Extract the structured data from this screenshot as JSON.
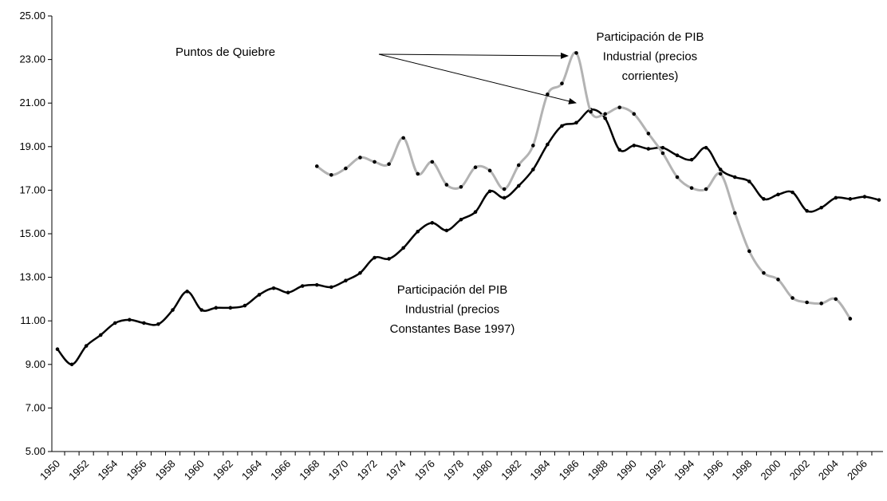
{
  "chart_data": {
    "type": "line",
    "categories": [
      "1950",
      null,
      "1952",
      null,
      "1954",
      null,
      "1956",
      null,
      "1958",
      null,
      "1960",
      null,
      "1962",
      null,
      "1964",
      null,
      "1966",
      null,
      "1968",
      null,
      "1970",
      null,
      "1972",
      null,
      "1974",
      null,
      "1976",
      null,
      "1978",
      null,
      "1980",
      null,
      "1982",
      null,
      "1984",
      null,
      "1986",
      null,
      "1988",
      null,
      "1990",
      null,
      "1992",
      null,
      "1994",
      null,
      "1996",
      null,
      "1998",
      null,
      "2000",
      null,
      "2002",
      null,
      "2004",
      null,
      "2006",
      null
    ],
    "series": [
      {
        "color": "#000000",
        "values": [
          9.7,
          9.0,
          9.85,
          10.35,
          10.9,
          11.05,
          10.9,
          10.85,
          11.5,
          12.35,
          11.5,
          11.6,
          11.6,
          11.7,
          12.2,
          12.5,
          12.3,
          12.6,
          12.65,
          12.55,
          12.85,
          13.2,
          13.9,
          13.85,
          14.35,
          15.1,
          15.5,
          15.15,
          15.65,
          16.0,
          16.95,
          16.65,
          17.2,
          17.95,
          19.1,
          19.95,
          20.1,
          20.7,
          20.3,
          18.85,
          19.05,
          18.9,
          18.95,
          18.6,
          18.4,
          18.95,
          17.95,
          17.6,
          17.4,
          16.6,
          16.8,
          16.9,
          16.05,
          16.2,
          16.65,
          16.6,
          16.7,
          16.55
        ]
      },
      {
        "color": "#b3b3b3",
        "values": [
          null,
          null,
          null,
          null,
          null,
          null,
          null,
          null,
          null,
          null,
          null,
          null,
          null,
          null,
          null,
          null,
          null,
          null,
          18.1,
          17.7,
          18.0,
          18.5,
          18.3,
          18.2,
          19.4,
          17.75,
          18.3,
          17.25,
          17.15,
          18.05,
          17.9,
          17.05,
          18.15,
          19.05,
          21.4,
          21.9,
          23.3,
          20.6,
          20.5,
          20.8,
          20.5,
          19.6,
          18.7,
          17.6,
          17.1,
          17.05,
          17.75,
          15.95,
          14.2,
          13.2,
          12.9,
          12.05,
          11.85,
          11.8,
          12.0,
          11.1,
          null,
          null
        ]
      }
    ],
    "ylim": [
      5,
      25
    ],
    "yticks": [
      {
        "value": 5,
        "label": "5.00"
      },
      {
        "value": 7,
        "label": "7.00"
      },
      {
        "value": 9,
        "label": "9.00"
      },
      {
        "value": 11,
        "label": "11.00"
      },
      {
        "value": 13,
        "label": "13.00"
      },
      {
        "value": 15,
        "label": "15.00"
      },
      {
        "value": 17,
        "label": "17.00"
      },
      {
        "value": 19,
        "label": "19.00"
      },
      {
        "value": 21,
        "label": "21.00"
      },
      {
        "value": 23,
        "label": "23.00"
      },
      {
        "value": 25,
        "label": "25.00"
      }
    ],
    "grid": false,
    "annotations": [
      {
        "lines": [
          "Puntos de Quiebre"
        ]
      },
      {
        "lines": [
          "Participación de PIB",
          "Industrial (precios",
          "corrientes)"
        ]
      },
      {
        "lines": [
          "Participación del PIB",
          "Industrial (precios",
          "Constantes Base 1997)"
        ]
      }
    ]
  }
}
